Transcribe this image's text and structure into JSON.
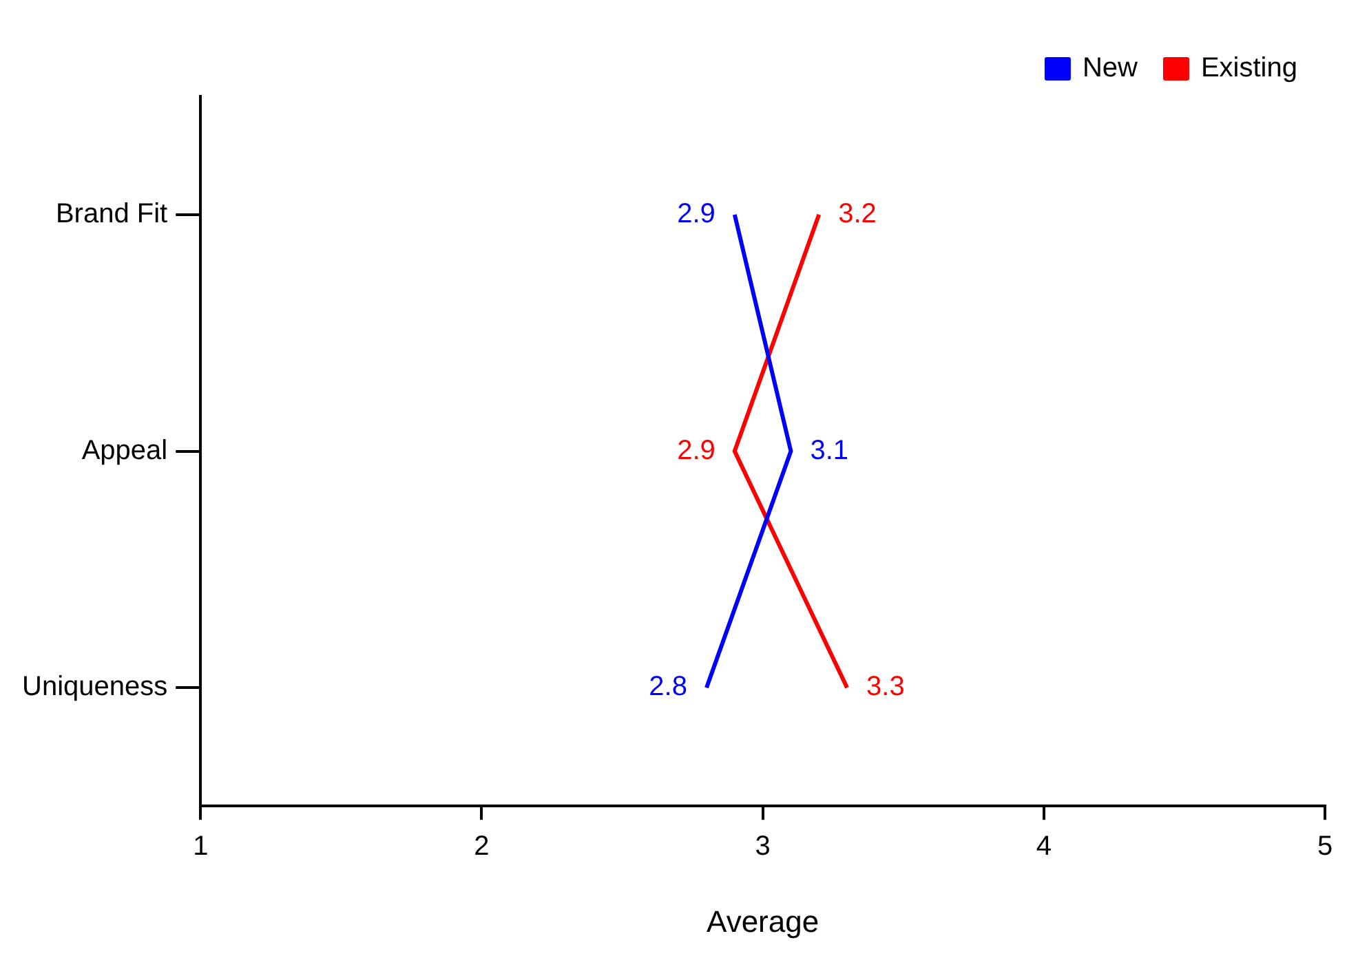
{
  "chart_data": {
    "type": "line",
    "orientation": "horizontal",
    "xlabel": "Average",
    "categories": [
      "Brand Fit",
      "Appeal",
      "Uniqueness"
    ],
    "series": [
      {
        "name": "New",
        "color": "#0000ff",
        "values": [
          2.9,
          3.1,
          2.8
        ]
      },
      {
        "name": "Existing",
        "color": "#ff0000",
        "values": [
          3.2,
          2.9,
          3.3
        ]
      }
    ],
    "xlim": [
      1,
      5
    ],
    "xticks": [
      1,
      2,
      3,
      4,
      5
    ],
    "grid": false,
    "legend": "top right",
    "marker": "none",
    "line_style": "solid",
    "data_labels": true
  }
}
